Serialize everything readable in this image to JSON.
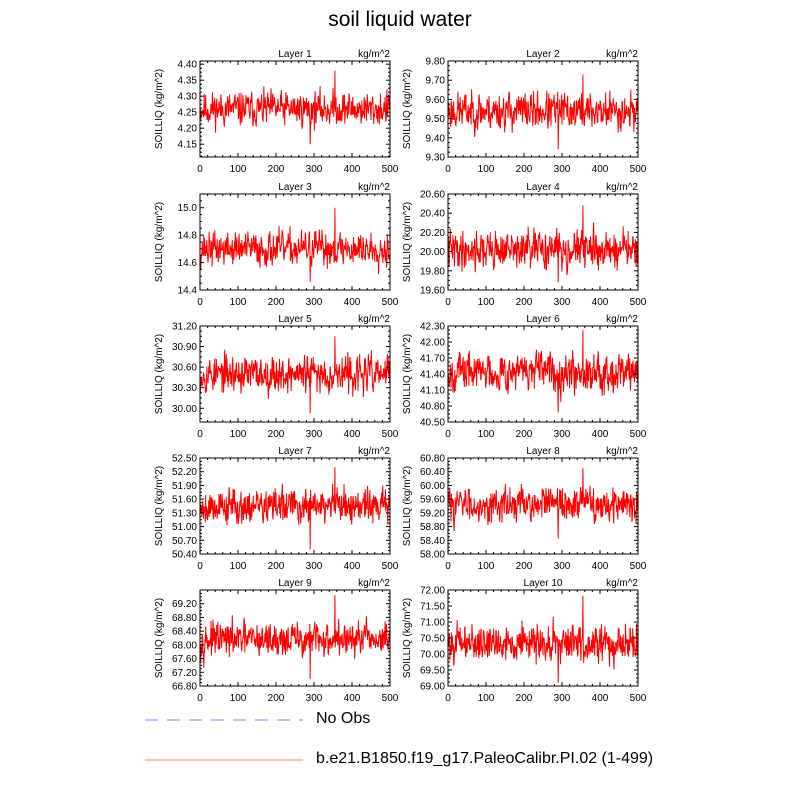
{
  "title": "soil liquid water",
  "legend": {
    "obs_label": "No Obs",
    "obs_color": "#8080ff",
    "model_label": "b.e21.B1850.f19_g17.PaleoCalibr.PI.02 (1-499)",
    "model_color": "#ff0000",
    "model_legend_color": "#ff8080"
  },
  "chart_data": [
    {
      "type": "line",
      "title": "Layer 1",
      "units": "kg/m^2",
      "ylabel": "SOILLIQ  (kg/m^2)",
      "xlim": [
        0,
        500
      ],
      "xticks": [
        0,
        100,
        200,
        300,
        400,
        500
      ],
      "ylim": [
        4.11,
        4.41
      ],
      "yticks": [
        "4.15",
        "4.20",
        "4.25",
        "4.30",
        "4.35",
        "4.40"
      ],
      "series": [
        {
          "name": "b.e21.B1850.f19_g17.PaleoCalibr.PI.02 (1-499)",
          "x_range": [
            1,
            499
          ],
          "mean": 4.26,
          "amp": 0.03,
          "min": 4.15,
          "max": 4.38,
          "color": "#ff0000",
          "seed": 11
        }
      ]
    },
    {
      "type": "line",
      "title": "Layer 2",
      "units": "kg/m^2",
      "ylabel": "SOILLIQ  (kg/m^2)",
      "xlim": [
        0,
        500
      ],
      "xticks": [
        0,
        100,
        200,
        300,
        400,
        500
      ],
      "ylim": [
        9.3,
        9.8
      ],
      "yticks": [
        "9.30",
        "9.40",
        "9.50",
        "9.60",
        "9.70",
        "9.80"
      ],
      "series": [
        {
          "name": "b.e21.B1850.f19_g17.PaleoCalibr.PI.02 (1-499)",
          "x_range": [
            1,
            499
          ],
          "mean": 9.54,
          "amp": 0.055,
          "min": 9.34,
          "max": 9.73,
          "color": "#ff0000",
          "seed": 23
        }
      ]
    },
    {
      "type": "line",
      "title": "Layer 3",
      "units": "kg/m^2",
      "ylabel": "SOILLIQ  (kg/m^2)",
      "xlim": [
        0,
        500
      ],
      "xticks": [
        0,
        100,
        200,
        300,
        400,
        500
      ],
      "ylim": [
        14.4,
        15.1
      ],
      "yticks": [
        "14.4",
        "14.6",
        "14.8",
        "15.0"
      ],
      "series": [
        {
          "name": "b.e21.B1850.f19_g17.PaleoCalibr.PI.02 (1-499)",
          "x_range": [
            1,
            499
          ],
          "mean": 14.7,
          "amp": 0.07,
          "min": 14.46,
          "max": 15.0,
          "color": "#ff0000",
          "seed": 37
        }
      ]
    },
    {
      "type": "line",
      "title": "Layer 4",
      "units": "kg/m^2",
      "ylabel": "SOILLIQ  (kg/m^2)",
      "xlim": [
        0,
        500
      ],
      "xticks": [
        0,
        100,
        200,
        300,
        400,
        500
      ],
      "ylim": [
        19.6,
        20.6
      ],
      "yticks": [
        "19.60",
        "19.80",
        "20.00",
        "20.20",
        "20.40",
        "20.60"
      ],
      "series": [
        {
          "name": "b.e21.B1850.f19_g17.PaleoCalibr.PI.02 (1-499)",
          "x_range": [
            1,
            499
          ],
          "mean": 20.02,
          "amp": 0.11,
          "min": 19.68,
          "max": 20.48,
          "color": "#ff0000",
          "seed": 41
        }
      ]
    },
    {
      "type": "line",
      "title": "Layer 5",
      "units": "kg/m^2",
      "ylabel": "SOILLIQ  (kg/m^2)",
      "xlim": [
        0,
        500
      ],
      "xticks": [
        0,
        100,
        200,
        300,
        400,
        500
      ],
      "ylim": [
        29.8,
        31.2
      ],
      "yticks": [
        "30.00",
        "30.30",
        "30.60",
        "30.90",
        "31.20"
      ],
      "series": [
        {
          "name": "b.e21.B1850.f19_g17.PaleoCalibr.PI.02 (1-499)",
          "x_range": [
            1,
            499
          ],
          "mean": 30.5,
          "amp": 0.15,
          "min": 29.93,
          "max": 31.05,
          "color": "#ff0000",
          "seed": 53
        }
      ]
    },
    {
      "type": "line",
      "title": "Layer 6",
      "units": "kg/m^2",
      "ylabel": "SOILLIQ  (kg/m^2)",
      "xlim": [
        0,
        500
      ],
      "xticks": [
        0,
        100,
        200,
        300,
        400,
        500
      ],
      "ylim": [
        40.5,
        42.3
      ],
      "yticks": [
        "40.50",
        "40.80",
        "41.10",
        "41.40",
        "41.70",
        "42.00",
        "42.30"
      ],
      "series": [
        {
          "name": "b.e21.B1850.f19_g17.PaleoCalibr.PI.02 (1-499)",
          "x_range": [
            1,
            499
          ],
          "mean": 41.45,
          "amp": 0.2,
          "min": 40.68,
          "max": 42.22,
          "color": "#ff0000",
          "seed": 67
        }
      ]
    },
    {
      "type": "line",
      "title": "Layer 7",
      "units": "kg/m^2",
      "ylabel": "SOILLIQ  (kg/m^2)",
      "xlim": [
        0,
        500
      ],
      "xticks": [
        0,
        100,
        200,
        300,
        400,
        500
      ],
      "ylim": [
        50.4,
        52.5
      ],
      "yticks": [
        "50.40",
        "50.70",
        "51.00",
        "51.30",
        "51.60",
        "51.90",
        "52.20",
        "52.50"
      ],
      "series": [
        {
          "name": "b.e21.B1850.f19_g17.PaleoCalibr.PI.02 (1-499)",
          "x_range": [
            1,
            499
          ],
          "mean": 51.45,
          "amp": 0.22,
          "min": 50.5,
          "max": 52.3,
          "color": "#ff0000",
          "seed": 79
        }
      ]
    },
    {
      "type": "line",
      "title": "Layer 8",
      "units": "kg/m^2",
      "ylabel": "SOILLIQ  (kg/m^2)",
      "xlim": [
        0,
        500
      ],
      "xticks": [
        0,
        100,
        200,
        300,
        400,
        500
      ],
      "ylim": [
        58.0,
        60.8
      ],
      "yticks": [
        "58.00",
        "58.40",
        "58.80",
        "59.20",
        "59.60",
        "60.00",
        "60.40",
        "60.80"
      ],
      "series": [
        {
          "name": "b.e21.B1850.f19_g17.PaleoCalibr.PI.02 (1-499)",
          "x_range": [
            1,
            499
          ],
          "mean": 59.45,
          "amp": 0.28,
          "min": 58.45,
          "max": 60.5,
          "color": "#ff0000",
          "seed": 83
        }
      ]
    },
    {
      "type": "line",
      "title": "Layer 9",
      "units": "kg/m^2",
      "ylabel": "SOILLIQ  (kg/m^2)",
      "xlim": [
        0,
        500
      ],
      "xticks": [
        0,
        100,
        200,
        300,
        400,
        500
      ],
      "ylim": [
        66.8,
        69.6
      ],
      "yticks": [
        "66.80",
        "67.20",
        "67.60",
        "68.00",
        "68.40",
        "68.80",
        "69.20"
      ],
      "series": [
        {
          "name": "b.e21.B1850.f19_g17.PaleoCalibr.PI.02 (1-499)",
          "x_range": [
            1,
            499
          ],
          "mean": 68.15,
          "amp": 0.28,
          "min": 67.0,
          "max": 69.45,
          "color": "#ff0000",
          "seed": 97
        }
      ]
    },
    {
      "type": "line",
      "title": "Layer 10",
      "units": "kg/m^2",
      "ylabel": "SOILLIQ  (kg/m^2)",
      "xlim": [
        0,
        500
      ],
      "xticks": [
        0,
        100,
        200,
        300,
        400,
        500
      ],
      "ylim": [
        69.0,
        72.0
      ],
      "yticks": [
        "69.00",
        "69.50",
        "70.00",
        "70.50",
        "71.00",
        "71.50",
        "72.00"
      ],
      "series": [
        {
          "name": "b.e21.B1850.f19_g17.PaleoCalibr.PI.02 (1-499)",
          "x_range": [
            1,
            499
          ],
          "mean": 70.35,
          "amp": 0.32,
          "min": 69.1,
          "max": 71.82,
          "color": "#ff0000",
          "seed": 101
        }
      ]
    }
  ]
}
